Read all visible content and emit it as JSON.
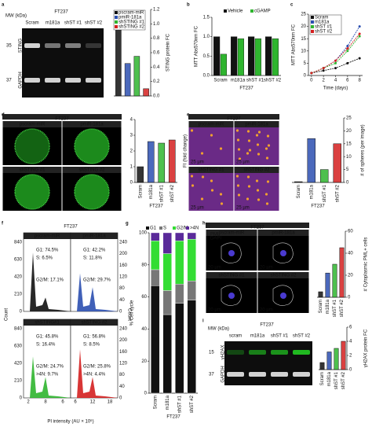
{
  "panel_labels": [
    "a",
    "b",
    "c",
    "d",
    "e",
    "f",
    "g",
    "h",
    "i"
  ],
  "images": {
    "a": {
      "cell_line": "FT237",
      "mw_label": "MW (kDa)",
      "lanes": [
        "Scram",
        "m181a",
        "shST #1",
        "shST #2"
      ],
      "bands": [
        "STING",
        "GAPDH"
      ],
      "markers": [
        "35",
        "37"
      ]
    },
    "d": {
      "cell_line": "FT237",
      "conditions": [
        "pscram-miR",
        "pmiR-181a",
        "shSTING #1",
        "shSTING #2"
      ]
    },
    "e": {
      "cell_line": "FT237",
      "conditions": [
        "pscram-miR",
        "pmiR-181a",
        "shSTING #1",
        "shSTING #2"
      ],
      "scale_bar": "25 µm"
    },
    "f": {
      "cell_line": "FT237",
      "conditions": [
        "pscram-miR",
        "pmiR-181a",
        "shSTING#1",
        "shSTING #2"
      ],
      "ylabel": "Count",
      "xlabel": "PI intensity (AU × 10⁶)",
      "left_ticks": [
        "0",
        "210",
        "420",
        "630",
        "840"
      ],
      "right_ticks": [
        "0",
        "40",
        "80",
        "120",
        "160",
        "200",
        "240"
      ],
      "xticks": [
        "2",
        "8",
        "6",
        "12",
        "18"
      ],
      "gates": [
        [
          "G1: 74.5%",
          "S: 6.5%",
          "G2/M: 17.1%"
        ],
        [
          "G1: 42.2%",
          "S: 11.8%",
          "G2/M: 29.7%"
        ],
        [
          "G1: 45.8%",
          "S: 16.4%",
          "G2/M: 24.7%",
          ">4N: 9.7%"
        ],
        [
          "G1: 56.8%",
          "S: 8.5%",
          "G2/M: 25.8%",
          ">4N: 4.4%"
        ]
      ]
    },
    "h": {
      "cell_line": "FT237",
      "conditions": [
        "pscram-miR",
        "pmiR-181a",
        "shSTING #1",
        "shSTING #2"
      ],
      "scale_bar": "20 µm",
      "stains": [
        "PML",
        "DAPI"
      ]
    },
    "i": {
      "cell_line": "FT237",
      "mw_label": "MW (kDa)",
      "lanes": [
        "scram",
        "m181a",
        "shST #1",
        "shST #2"
      ],
      "bands": [
        "γH2AX",
        "GAPDH"
      ],
      "markers": [
        "15",
        "37"
      ]
    }
  },
  "chart_data": [
    {
      "type": "bar",
      "ylabel": "STING protein FC",
      "categories": [
        "pscram-miR",
        "pmiR-181a",
        "shSTING #1",
        "shSTING #2"
      ],
      "values": [
        1.0,
        0.45,
        0.55,
        0.1
      ],
      "colors": [
        "#111111",
        "#2b4fb0",
        "#2fb52f",
        "#d42020"
      ],
      "ylim": [
        0,
        1.2
      ],
      "yticks": [
        {
          "value": 0,
          "label": "0.0"
        },
        {
          "value": 0.2,
          "label": "0.2"
        },
        {
          "value": 0.4,
          "label": "0.4"
        },
        {
          "value": 0.6,
          "label": "0.6"
        },
        {
          "value": 0.8,
          "label": "0.8"
        },
        {
          "value": 1,
          "label": "1.0"
        },
        {
          "value": 1.2,
          "label": "1.2"
        }
      ],
      "legend": "top-left",
      "xtick_labels": false
    },
    {
      "type": "bar",
      "ylabel": "MTT Abs570nm FC",
      "xlabel": "FT237",
      "categories": [
        "Scram",
        "m181a",
        "shST #1",
        "shST #2"
      ],
      "series": [
        {
          "name": "Vehicle",
          "color": "#111111",
          "values": [
            1.0,
            1.0,
            1.0,
            1.0
          ]
        },
        {
          "name": "cGAMP",
          "color": "#2fb52f",
          "values": [
            0.55,
            0.95,
            0.95,
            0.95
          ]
        }
      ],
      "ylim": [
        0,
        1.5
      ],
      "yticks": [
        {
          "value": 0,
          "label": "0.0"
        },
        {
          "value": 0.5,
          "label": "0.5"
        },
        {
          "value": 1,
          "label": "1.0"
        },
        {
          "value": 1.5,
          "label": "1.5"
        }
      ],
      "legend": "top"
    },
    {
      "type": "line",
      "ylabel": "MTT Abs570nm FC",
      "xlabel": "Time (days)",
      "x": [
        0,
        2,
        4,
        6,
        8
      ],
      "xlim": [
        -0.5,
        8.5
      ],
      "xticks": [
        0,
        2,
        4,
        6,
        8
      ],
      "series": [
        {
          "name": "Scram",
          "color": "#111111",
          "values": [
            1,
            2,
            3,
            5,
            7
          ]
        },
        {
          "name": "m181a",
          "color": "#2b4fb0",
          "values": [
            1,
            3,
            6,
            12,
            20
          ]
        },
        {
          "name": "shST #1",
          "color": "#2fb52f",
          "values": [
            1,
            3,
            5,
            10,
            16
          ]
        },
        {
          "name": "shST #2",
          "color": "#d42020",
          "values": [
            1,
            3,
            6,
            11,
            17
          ]
        }
      ],
      "ylim": [
        0,
        25
      ],
      "yticks": [
        0,
        5,
        10,
        15,
        20,
        25
      ],
      "legend": "top-left"
    },
    {
      "type": "bar",
      "ylabel": "FI (fold change)",
      "xlabel": "FT237",
      "categories": [
        "Scram",
        "m181a",
        "shST #1",
        "shST #2"
      ],
      "values": [
        1.0,
        2.6,
        2.5,
        2.7
      ],
      "colors": [
        "#111111",
        "#2b4fb0",
        "#2fb52f",
        "#d42020"
      ],
      "ylim": [
        0,
        4
      ],
      "yticks": [
        0,
        1,
        2,
        3,
        4
      ]
    },
    {
      "type": "bar",
      "ylabel": "# of spheres (per image)",
      "xlabel": "FT237",
      "categories": [
        "Scram",
        "m181a",
        "shST #1",
        "shST #2"
      ],
      "values": [
        0.3,
        17,
        5,
        15
      ],
      "colors": [
        "#111111",
        "#2b4fb0",
        "#2fb52f",
        "#d42020"
      ],
      "ylim": [
        0,
        25
      ],
      "yticks": [
        0,
        5,
        10,
        15,
        20,
        25
      ]
    },
    {
      "type": "stacked_bar",
      "ylabel": "% Cell cycle",
      "xlabel": "FT237",
      "categories": [
        "Scram",
        "m181a",
        "shST #1",
        "shST #2"
      ],
      "series": [
        {
          "name": "G1",
          "color": "#111111",
          "values": [
            67,
            49,
            56,
            58
          ],
          "show_labels": true
        },
        {
          "name": "S",
          "color": "#777777",
          "values": [
            10,
            15,
            12,
            12
          ]
        },
        {
          "name": "G2/M",
          "color": "#33dd33",
          "values": [
            18,
            23,
            27,
            26
          ]
        },
        {
          "name": ">4N",
          "color": "#5a2a9a",
          "values": [
            5,
            13,
            5,
            4
          ]
        }
      ],
      "ylim": [
        0,
        100
      ],
      "yticks": [
        0,
        20,
        40,
        60,
        80,
        100
      ],
      "legend": "top"
    },
    {
      "type": "bar",
      "ylabel": "# Cytoplasmic PML+ cells",
      "categories": [
        "Scram",
        "m181a",
        "shST #1",
        "shST #2"
      ],
      "values": [
        5,
        22,
        30,
        45
      ],
      "colors": [
        "#111111",
        "#2b4fb0",
        "#2fb52f",
        "#d42020"
      ],
      "ylim": [
        0,
        60
      ],
      "yticks": [
        0,
        20,
        40,
        60
      ]
    },
    {
      "type": "bar",
      "ylabel": "γH2AX protein FC",
      "categories": [
        "Scram",
        "m181a",
        "shST #1",
        "shST #2"
      ],
      "values": [
        1,
        2.5,
        3,
        4
      ],
      "colors": [
        "#111111",
        "#2b4fb0",
        "#2fb52f",
        "#d42020"
      ],
      "ylim": [
        0,
        6
      ],
      "yticks": [
        0,
        2,
        4,
        6
      ]
    }
  ]
}
